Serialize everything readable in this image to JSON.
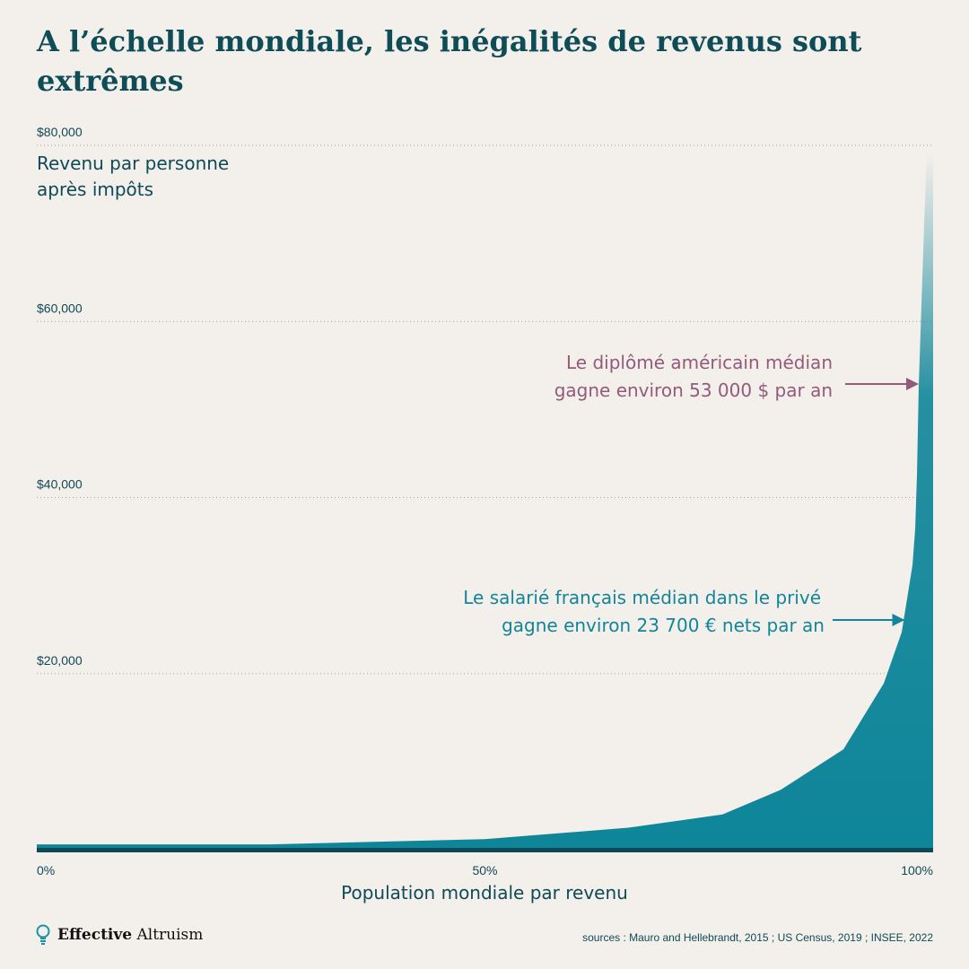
{
  "title": "A l’échelle mondiale, les inégalités de revenus sont extrêmes",
  "chart_data": {
    "type": "area",
    "ylabel": "Revenu par personne après impôts",
    "ylabel_lines": [
      "Revenu par personne",
      "après impôts"
    ],
    "xlabel": "Population mondiale par revenu",
    "ylim": [
      0,
      80000
    ],
    "xlim": [
      0,
      100
    ],
    "y_ticks": [
      20000,
      40000,
      60000,
      80000
    ],
    "y_tick_labels": [
      "$20,000",
      "$40,000",
      "$60,000",
      "$80,000"
    ],
    "x_ticks": [
      0,
      50,
      100
    ],
    "x_tick_labels": [
      "0%",
      "50%",
      "100%"
    ],
    "grid": "horizontal dotted",
    "color": "#0e8599",
    "x": [
      0,
      26,
      50,
      66,
      76.5,
      83,
      90,
      94.5,
      96.5,
      97.7,
      98,
      98.2,
      98.4,
      99,
      99.3,
      100
    ],
    "y": [
      600,
      600,
      1200,
      2500,
      4000,
      6800,
      11400,
      18900,
      24700,
      32300,
      36400,
      42500,
      52700,
      71000,
      79000,
      79000
    ],
    "annotations": [
      {
        "lines": [
          "Le diplômé américain médian",
          "gagne environ 53 000 $ par an"
        ],
        "x": 98.2,
        "y": 53000,
        "color": "#945a7c"
      },
      {
        "lines": [
          "Le salarié français médian dans le privé",
          "gagne environ 23 700 € nets par an"
        ],
        "x": 96.7,
        "y": 26000,
        "color": "#128598"
      }
    ]
  },
  "footer": {
    "brand_bold": "Effective",
    "brand_regular": "Altruism",
    "sources": "sources : Mauro and Hellebrandt, 2015 ; US Census, 2019 ; INSEE, 2022"
  }
}
